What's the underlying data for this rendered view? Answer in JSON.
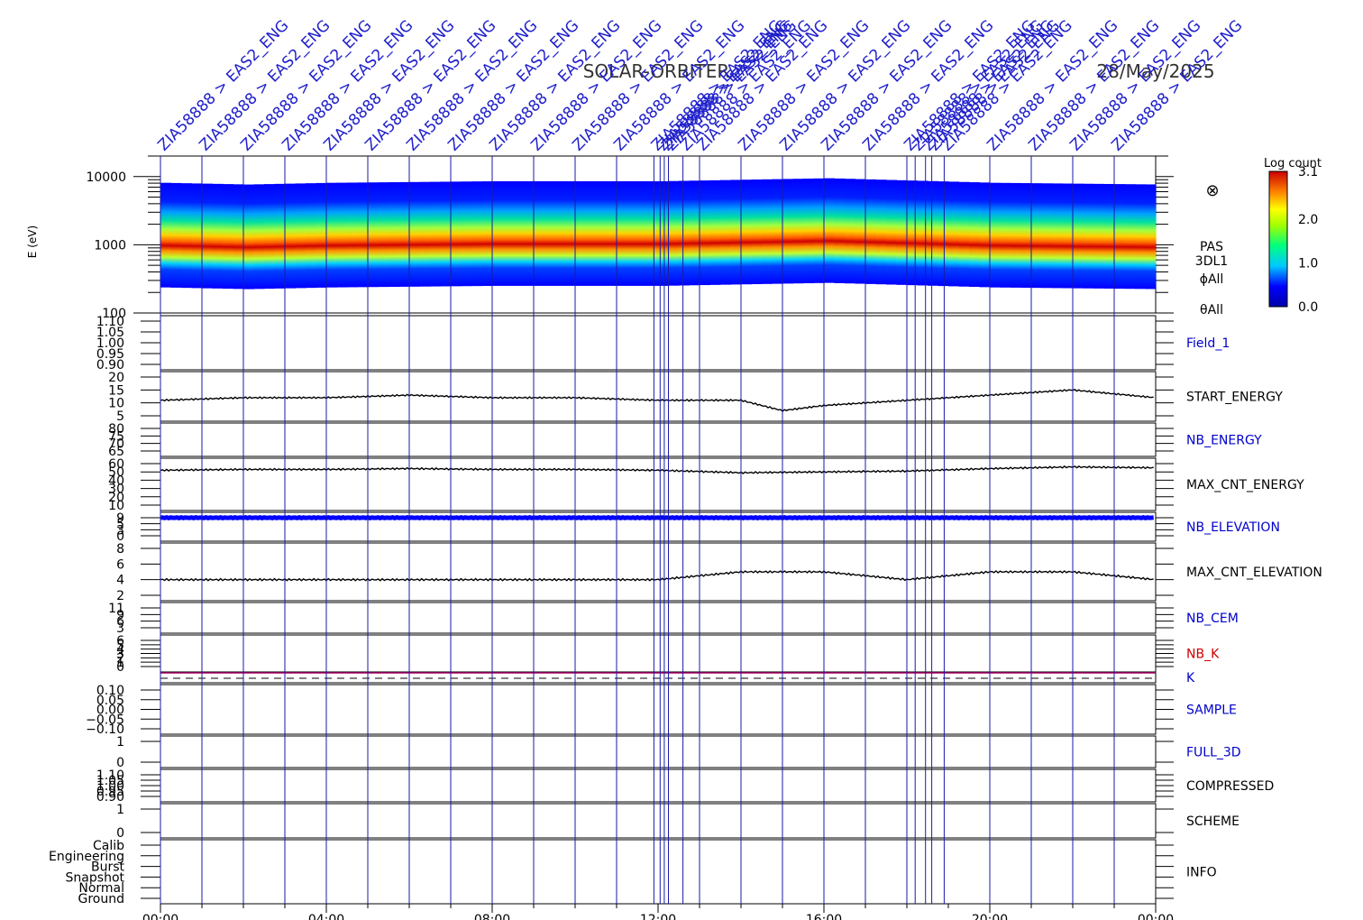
{
  "header": {
    "mission": "SOLAR-ORBITER",
    "date": "28/May/2025"
  },
  "event_label_text": "ZIA58888 > EAS2_ENG",
  "spectrogram": {
    "ylabel": "E (eV)",
    "yticks": [
      "10000",
      "1000",
      "100"
    ],
    "ylim": [
      100,
      20000
    ],
    "side_labels": [
      "PAS",
      "3DL1",
      "ϕAll",
      "θAll"
    ],
    "look_symbol": "⊗",
    "colorbar": {
      "title": "Log count",
      "ticks": [
        "3.1",
        "2.0",
        "1.0",
        "0.0"
      ],
      "range": [
        0.0,
        3.1
      ]
    }
  },
  "time_axis": {
    "ticks": [
      "00:00",
      "04:00",
      "08:00",
      "12:00",
      "16:00",
      "20:00",
      "00:00"
    ],
    "range_hours": [
      0,
      24
    ]
  },
  "panels": [
    {
      "name": "Field_1",
      "color": "#0000cc",
      "ticks": [
        "1.10",
        "1.05",
        "1.00",
        "0.95",
        "0.90"
      ]
    },
    {
      "name": "START_ENERGY",
      "color": "#000000",
      "ticks": [
        "20",
        "15",
        "10",
        "5"
      ]
    },
    {
      "name": "NB_ENERGY",
      "color": "#0000cc",
      "ticks": [
        "80",
        "75",
        "70",
        "65"
      ]
    },
    {
      "name": "MAX_CNT_ENERGY",
      "color": "#000000",
      "ticks": [
        "60",
        "50",
        "40",
        "30",
        "20",
        "10"
      ]
    },
    {
      "name": "NB_ELEVATION",
      "color": "#0000cc",
      "ticks": [
        "9",
        "5",
        "3",
        "0"
      ]
    },
    {
      "name": "MAX_CNT_ELEVATION",
      "color": "#000000",
      "ticks": [
        "8",
        "6",
        "4",
        "2"
      ]
    },
    {
      "name": "NB_CEM",
      "color": "#0000cc",
      "ticks": [
        "11",
        "9",
        "6",
        "3"
      ]
    },
    {
      "name": "NB_K",
      "color": "#cc0000",
      "ticks": [
        "6",
        "5",
        "4",
        "3",
        "2",
        "1",
        "0"
      ]
    },
    {
      "name": "K",
      "color": "#0000cc",
      "ticks": []
    },
    {
      "name": "SAMPLE",
      "color": "#0000cc",
      "ticks": [
        "0.10",
        "0.05",
        "0.00",
        "−0.05",
        "−0.10"
      ]
    },
    {
      "name": "FULL_3D",
      "color": "#0000cc",
      "ticks": [
        "1",
        "0"
      ]
    },
    {
      "name": "COMPRESSED",
      "color": "#000000",
      "ticks": [
        "1.10",
        "1.05",
        "1.00",
        "0.95",
        "0.90"
      ]
    },
    {
      "name": "SCHEME",
      "color": "#000000",
      "ticks": [
        "1",
        "0"
      ]
    },
    {
      "name": "INFO",
      "color": "#000000",
      "ticks": [
        "Calib",
        "Engineering",
        "Burst",
        "Snapshot",
        "Normal",
        "Ground"
      ]
    }
  ],
  "chart_data": {
    "type": "heatmap",
    "title": "SOLAR-ORBITER  28/May/2025",
    "x_unit": "hours",
    "event_times_hours": [
      0.0,
      1.0,
      2.0,
      3.0,
      4.0,
      5.0,
      6.0,
      7.0,
      8.0,
      9.0,
      10.0,
      11.0,
      11.9,
      12.05,
      12.15,
      12.25,
      12.6,
      13.0,
      14.0,
      15.0,
      16.0,
      17.0,
      18.0,
      18.2,
      18.45,
      18.6,
      18.9,
      20.0,
      21.0,
      22.0,
      23.0
    ],
    "spectrogram_peak_energy_ev": [
      {
        "t": 0,
        "e": 900
      },
      {
        "t": 2,
        "e": 850
      },
      {
        "t": 4,
        "e": 900
      },
      {
        "t": 8,
        "e": 950
      },
      {
        "t": 12,
        "e": 950
      },
      {
        "t": 14,
        "e": 1000
      },
      {
        "t": 16,
        "e": 1050
      },
      {
        "t": 20,
        "e": 900
      },
      {
        "t": 24,
        "e": 850
      }
    ],
    "series": [
      {
        "name": "START_ENERGY",
        "t": [
          0,
          2,
          4,
          6,
          8,
          10,
          12,
          14,
          15,
          16,
          18,
          20,
          22,
          24
        ],
        "values": [
          11,
          12,
          12,
          13,
          12,
          12,
          11,
          11,
          7,
          9,
          11,
          13,
          15,
          12
        ]
      },
      {
        "name": "MAX_CNT_ENERGY",
        "t": [
          0,
          2,
          4,
          6,
          8,
          10,
          12,
          14,
          16,
          18,
          20,
          22,
          24
        ],
        "values": [
          52,
          53,
          53,
          54,
          53,
          53,
          52,
          49,
          50,
          51,
          54,
          56,
          55
        ]
      },
      {
        "name": "NB_ELEVATION",
        "t": [
          0,
          24
        ],
        "values": [
          9,
          9
        ]
      },
      {
        "name": "MAX_CNT_ELEVATION",
        "t": [
          0,
          4,
          8,
          11,
          12,
          14,
          16,
          18,
          20,
          22,
          24
        ],
        "values": [
          4,
          4,
          4,
          4,
          4,
          5,
          5,
          4,
          5,
          5,
          4
        ]
      },
      {
        "name": "K",
        "t": [
          0,
          24
        ],
        "values": [
          1,
          1
        ]
      }
    ]
  }
}
